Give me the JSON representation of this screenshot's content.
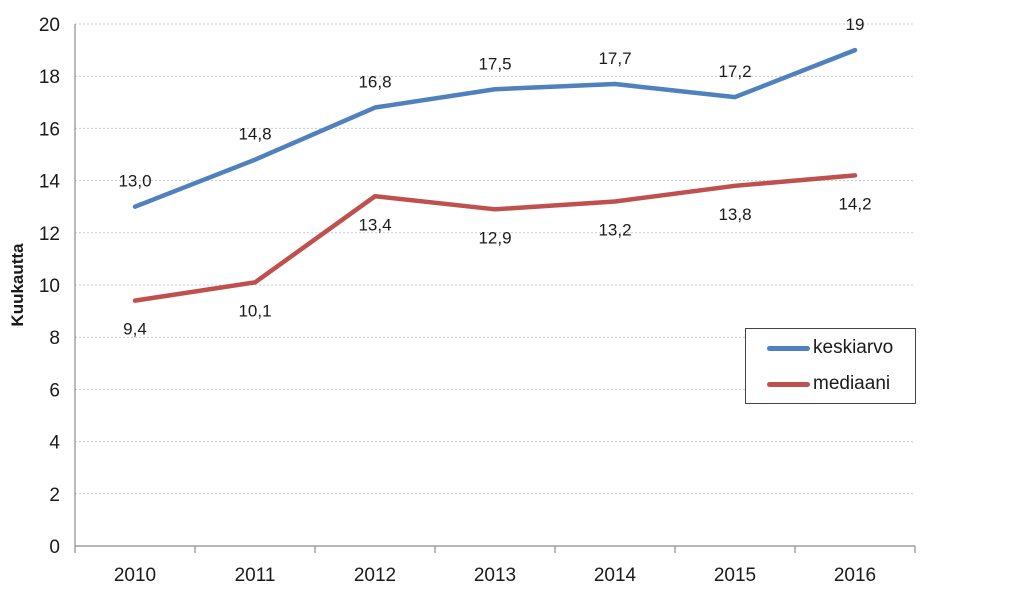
{
  "chart_data": {
    "type": "line",
    "title": "",
    "xlabel": "",
    "ylabel": "Kuukautta",
    "categories": [
      "2010",
      "2011",
      "2012",
      "2013",
      "2014",
      "2015",
      "2016"
    ],
    "ylim": [
      0,
      20
    ],
    "ytick_step": 2,
    "grid": true,
    "legend_position": "middle-right",
    "series": [
      {
        "name": "keskiarvo",
        "color": "#4F81BD",
        "values": [
          13.0,
          14.8,
          16.8,
          17.5,
          17.7,
          17.2,
          19.0
        ],
        "labels": [
          "13,0",
          "14,8",
          "16,8",
          "17,5",
          "17,7",
          "17,2",
          "19"
        ],
        "label_placement": "above"
      },
      {
        "name": "mediaani",
        "color": "#C0504D",
        "values": [
          9.4,
          10.1,
          13.4,
          12.9,
          13.2,
          13.8,
          14.2
        ],
        "labels": [
          "9,4",
          "10,1",
          "13,4",
          "12,9",
          "13,2",
          "13,8",
          "14,2"
        ],
        "label_placement": "below"
      }
    ]
  }
}
